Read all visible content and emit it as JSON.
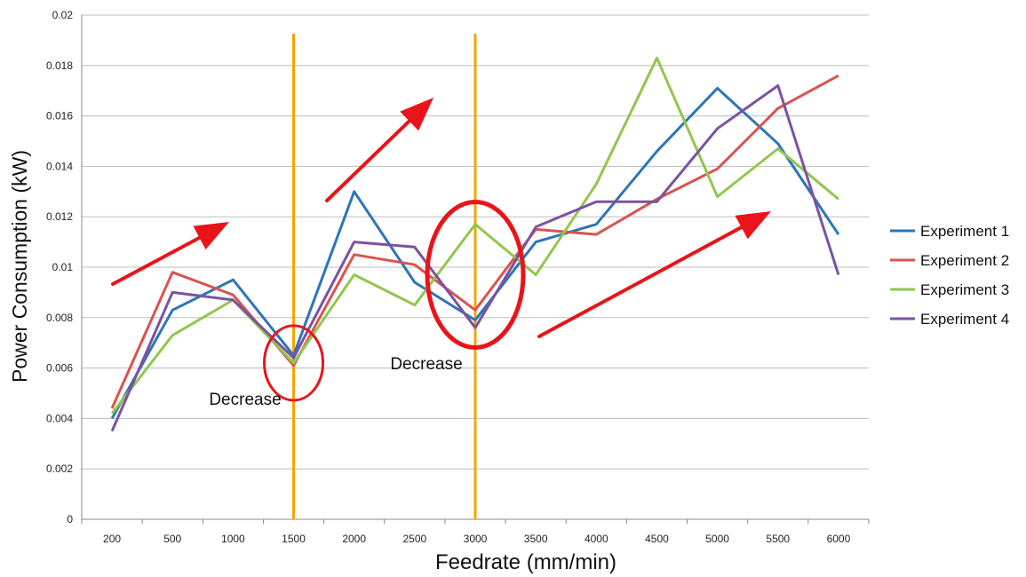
{
  "chart_data": {
    "type": "line",
    "title": "",
    "xlabel": "Feedrate (mm/min)",
    "ylabel": "Power Consumption (kW)",
    "ylim": [
      0,
      0.02
    ],
    "yticks": [
      "0",
      "0.002",
      "0.004",
      "0.006",
      "0.008",
      "0.01",
      "0.012",
      "0.014",
      "0.016",
      "0.018",
      "0.02"
    ],
    "categories": [
      "200",
      "500",
      "1000",
      "1500",
      "2000",
      "2500",
      "3000",
      "3500",
      "4000",
      "4500",
      "5000",
      "5500",
      "6000"
    ],
    "grid": true,
    "legend_position": "right",
    "series": [
      {
        "name": "Experiment 1",
        "color": "#2e75b6",
        "values": [
          0.004,
          0.0083,
          0.0095,
          0.0065,
          0.013,
          0.0094,
          0.0079,
          0.011,
          0.0117,
          0.0146,
          0.0171,
          0.0149,
          0.0113
        ]
      },
      {
        "name": "Experiment 2",
        "color": "#d9534f",
        "values": [
          0.0044,
          0.0098,
          0.0089,
          0.0061,
          0.0105,
          0.0101,
          0.0083,
          0.0115,
          0.0113,
          0.0127,
          0.0139,
          0.0163,
          0.0176
        ]
      },
      {
        "name": "Experiment 3",
        "color": "#92c64e",
        "values": [
          0.0042,
          0.0073,
          0.0087,
          0.0062,
          0.0097,
          0.0085,
          0.0117,
          0.0097,
          0.0133,
          0.0183,
          0.0128,
          0.0147,
          0.0127
        ]
      },
      {
        "name": "Experiment 4",
        "color": "#7b52a0",
        "values": [
          0.0035,
          0.009,
          0.0087,
          0.0064,
          0.011,
          0.0108,
          0.0076,
          0.0116,
          0.0126,
          0.0126,
          0.0155,
          0.0172,
          0.0097
        ]
      }
    ],
    "annotations": [
      {
        "text": "Decrease",
        "near": "1500"
      },
      {
        "text": "Decrease",
        "near": "3000"
      }
    ],
    "vertical_markers": [
      "1500",
      "3000"
    ],
    "marker_color": "#f5a500",
    "highlight_color": "#e8141a"
  }
}
